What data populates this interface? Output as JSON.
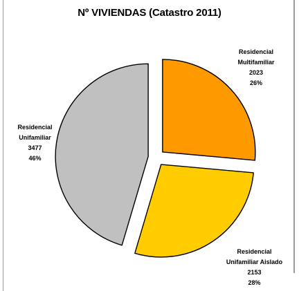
{
  "chart_data": {
    "type": "pie",
    "title": "Nº VIVIENDAS (Catastro 2011)",
    "slices": [
      {
        "label_lines": [
          "Residencial",
          "Multifamiliar"
        ],
        "value": 2023,
        "percent": "26%",
        "color": "#ff9900",
        "exploded": true
      },
      {
        "label_lines": [
          "Residencial",
          "Unifamiliar Aislado"
        ],
        "value": 2153,
        "percent": "28%",
        "color": "#ffcc00",
        "exploded": true
      },
      {
        "label_lines": [
          "Residencial",
          "Unifamiliar"
        ],
        "value": 3477,
        "percent": "46%",
        "color": "#c0c0c0",
        "exploded": true
      }
    ],
    "legend": "none",
    "data_labels": "category, value and percent next to each slice"
  }
}
